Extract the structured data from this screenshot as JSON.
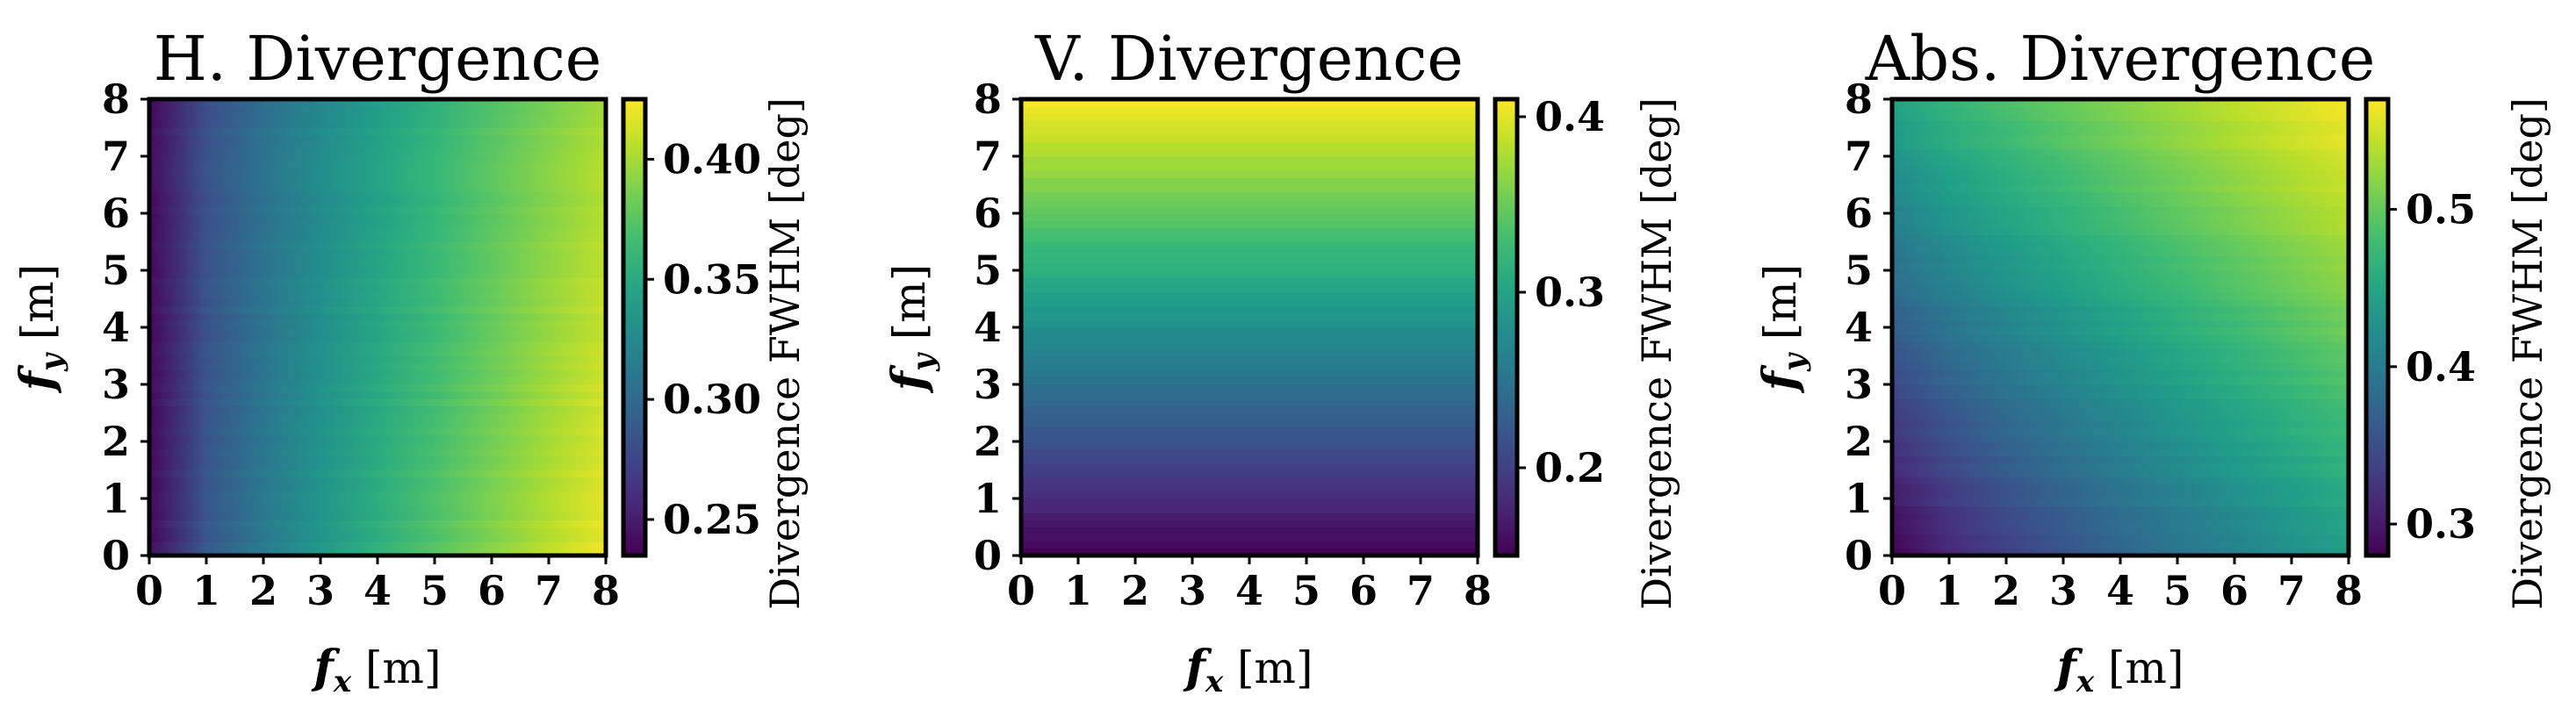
{
  "chart_data": [
    {
      "type": "heatmap",
      "title": "H. Divergence",
      "xlabel": {
        "var": "f",
        "sub": "x",
        "unit": "[m]"
      },
      "ylabel": {
        "var": "f",
        "sub": "y",
        "unit": "[m]"
      },
      "x_ticks": [
        "0",
        "1",
        "2",
        "3",
        "4",
        "5",
        "6",
        "7",
        "8"
      ],
      "y_ticks": [
        "0",
        "1",
        "2",
        "3",
        "4",
        "5",
        "6",
        "7",
        "8"
      ],
      "xlim": [
        0,
        8
      ],
      "ylim": [
        0,
        8
      ],
      "trend": "increases with fx",
      "colorbar": {
        "label": "Divergence FWHM [deg]",
        "range": [
          0.235,
          0.425
        ],
        "ticks": [
          {
            "value": 0.25,
            "label": "0.25"
          },
          {
            "value": 0.3,
            "label": "0.30"
          },
          {
            "value": 0.35,
            "label": "0.35"
          },
          {
            "value": 0.4,
            "label": "0.40"
          }
        ]
      },
      "value_at_corners": {
        "fx0_fy0": 0.24,
        "fx8_fy0": 0.42,
        "fx0_fy8": 0.24,
        "fx8_fy8": 0.4
      }
    },
    {
      "type": "heatmap",
      "title": "V. Divergence",
      "xlabel": {
        "var": "f",
        "sub": "x",
        "unit": "[m]"
      },
      "ylabel": {
        "var": "f",
        "sub": "y",
        "unit": "[m]"
      },
      "x_ticks": [
        "0",
        "1",
        "2",
        "3",
        "4",
        "5",
        "6",
        "7",
        "8"
      ],
      "y_ticks": [
        "0",
        "1",
        "2",
        "3",
        "4",
        "5",
        "6",
        "7",
        "8"
      ],
      "xlim": [
        0,
        8
      ],
      "ylim": [
        0,
        8
      ],
      "trend": "increases with fy",
      "colorbar": {
        "label": "Divergence FWHM [deg]",
        "range": [
          0.15,
          0.41
        ],
        "ticks": [
          {
            "value": 0.2,
            "label": "0.2"
          },
          {
            "value": 0.3,
            "label": "0.3"
          },
          {
            "value": 0.4,
            "label": "0.4"
          }
        ]
      },
      "value_at_corners": {
        "fx0_fy0": 0.15,
        "fx8_fy0": 0.15,
        "fx0_fy8": 0.41,
        "fx8_fy8": 0.41
      }
    },
    {
      "type": "heatmap",
      "title": "Abs. Divergence",
      "xlabel": {
        "var": "f",
        "sub": "x",
        "unit": "[m]"
      },
      "ylabel": {
        "var": "f",
        "sub": "y",
        "unit": "[m]"
      },
      "x_ticks": [
        "0",
        "1",
        "2",
        "3",
        "4",
        "5",
        "6",
        "7",
        "8"
      ],
      "y_ticks": [
        "0",
        "1",
        "2",
        "3",
        "4",
        "5",
        "6",
        "7",
        "8"
      ],
      "xlim": [
        0,
        8
      ],
      "ylim": [
        0,
        8
      ],
      "trend": "increases with fx and fy",
      "colorbar": {
        "label": "Divergence FWHM [deg]",
        "range": [
          0.28,
          0.57
        ],
        "ticks": [
          {
            "value": 0.3,
            "label": "0.3"
          },
          {
            "value": 0.4,
            "label": "0.4"
          },
          {
            "value": 0.5,
            "label": "0.5"
          }
        ]
      },
      "value_at_corners": {
        "fx0_fy0": 0.28,
        "fx8_fy0": 0.44,
        "fx0_fy8": 0.45,
        "fx8_fy8": 0.57
      }
    }
  ]
}
